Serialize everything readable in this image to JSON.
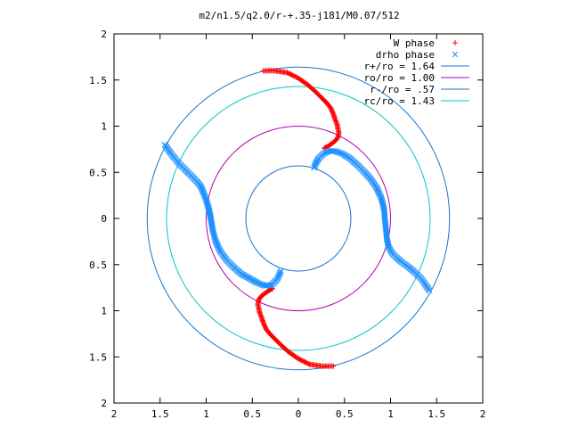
{
  "chart_data": {
    "type": "scatter",
    "title": "m2/n1.5/q2.0/r-+.35-j181/M0.07/512",
    "xlim": [
      -2,
      2
    ],
    "ylim": [
      -2,
      2
    ],
    "x_tick_labels": [
      "2",
      "1.5",
      "1",
      "0.5",
      "0",
      "0.5",
      "1",
      "1.5",
      "2"
    ],
    "y_tick_labels": [
      "2",
      "1.5",
      "1",
      "0.5",
      "0",
      "0.5",
      "1",
      "1.5",
      "2"
    ],
    "x_ticks": [
      -2,
      -1.5,
      -1,
      -0.5,
      0,
      0.5,
      1,
      1.5,
      2
    ],
    "y_ticks": [
      2,
      1.5,
      1,
      0.5,
      0,
      -0.5,
      -1,
      -1.5,
      -2
    ],
    "grid": false,
    "legend_position": "top-right",
    "legend": [
      {
        "label": "W phase",
        "kind": "marker",
        "marker": "plus",
        "color": "#ff0000"
      },
      {
        "label": "drho phase",
        "kind": "marker",
        "marker": "x",
        "color": "#1e90ff"
      },
      {
        "label": "r+/ro = 1.64",
        "kind": "line",
        "color": "#1874cd"
      },
      {
        "label": "ro/ro = 1.00",
        "kind": "line",
        "color": "#b000b0"
      },
      {
        "label": "r-/ro = .57",
        "kind": "line",
        "color": "#1874cd"
      },
      {
        "label": "rc/ro = 1.43",
        "kind": "line",
        "color": "#00c8c8"
      }
    ],
    "circles": [
      {
        "name": "r+/ro = 1.64",
        "radius": 1.64,
        "color": "#1874cd"
      },
      {
        "name": "rc/ro = 1.43",
        "radius": 1.43,
        "color": "#00c8c8"
      },
      {
        "name": "ro/ro = 1.00",
        "radius": 1.0,
        "color": "#b000b0"
      },
      {
        "name": "r-/ro = .57",
        "radius": 0.57,
        "color": "#1874cd"
      }
    ],
    "series": [
      {
        "name": "W phase",
        "color": "#ff0000",
        "marker": "plus",
        "arms": [
          {
            "x": [
              -0.38,
              -0.25,
              -0.12,
              0.0,
              0.1,
              0.18,
              0.24,
              0.3,
              0.35,
              0.38,
              0.4,
              0.42,
              0.43,
              0.44,
              0.43,
              0.4,
              0.36,
              0.32,
              0.28
            ],
            "y": [
              1.6,
              1.6,
              1.58,
              1.52,
              1.45,
              1.38,
              1.32,
              1.26,
              1.2,
              1.13,
              1.07,
              1.02,
              0.97,
              0.93,
              0.88,
              0.84,
              0.81,
              0.78,
              0.76
            ]
          },
          {
            "x": [
              0.38,
              0.25,
              0.12,
              0.0,
              -0.1,
              -0.18,
              -0.24,
              -0.3,
              -0.35,
              -0.38,
              -0.4,
              -0.42,
              -0.43,
              -0.44,
              -0.43,
              -0.4,
              -0.36,
              -0.32,
              -0.28
            ],
            "y": [
              -1.6,
              -1.6,
              -1.58,
              -1.52,
              -1.45,
              -1.38,
              -1.32,
              -1.26,
              -1.2,
              -1.13,
              -1.07,
              -1.02,
              -0.97,
              -0.93,
              -0.88,
              -0.84,
              -0.81,
              -0.78,
              -0.76
            ]
          }
        ]
      },
      {
        "name": "drho phase",
        "color": "#1e90ff",
        "marker": "x",
        "arms": [
          {
            "x": [
              0.17,
              0.19,
              0.22,
              0.27,
              0.33,
              0.4,
              0.48,
              0.56,
              0.64,
              0.72,
              0.79,
              0.85,
              0.9,
              0.93,
              0.94,
              0.95,
              0.96,
              0.98,
              1.02,
              1.07,
              1.13,
              1.2,
              1.27,
              1.34,
              1.42
            ],
            "y": [
              0.55,
              0.6,
              0.65,
              0.7,
              0.73,
              0.73,
              0.7,
              0.65,
              0.58,
              0.5,
              0.42,
              0.33,
              0.22,
              0.1,
              -0.02,
              -0.12,
              -0.22,
              -0.31,
              -0.38,
              -0.43,
              -0.48,
              -0.53,
              -0.59,
              -0.66,
              -0.78
            ]
          },
          {
            "x": [
              -1.45,
              -1.38,
              -1.3,
              -1.22,
              -1.15,
              -1.1,
              -1.06,
              -1.03,
              -1.0,
              -0.97,
              -0.95,
              -0.93,
              -0.9,
              -0.85,
              -0.78,
              -0.7,
              -0.62,
              -0.53,
              -0.44,
              -0.36,
              -0.29,
              -0.23,
              -0.19
            ],
            "y": [
              0.8,
              0.7,
              0.6,
              0.52,
              0.45,
              0.4,
              0.35,
              0.28,
              0.2,
              0.1,
              0.0,
              -0.12,
              -0.24,
              -0.35,
              -0.45,
              -0.53,
              -0.6,
              -0.65,
              -0.7,
              -0.73,
              -0.72,
              -0.66,
              -0.57
            ]
          }
        ]
      }
    ]
  }
}
